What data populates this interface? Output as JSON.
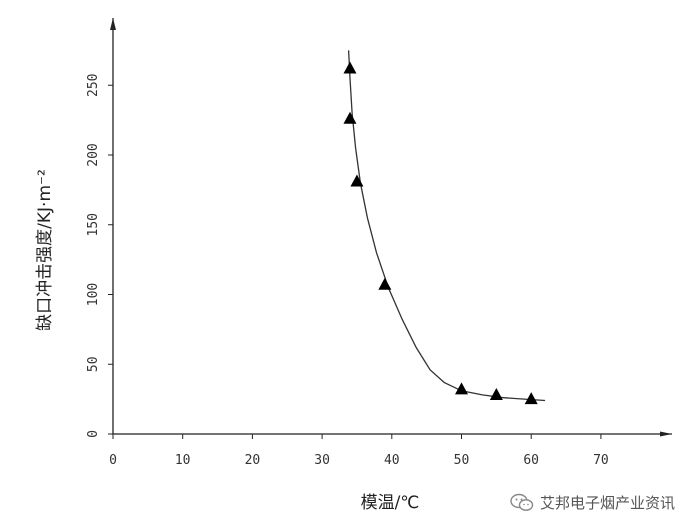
{
  "chart_data": {
    "type": "scatter",
    "title": "",
    "xlabel": "模温/℃",
    "ylabel": "缺口冲击强度/KJ·m⁻²",
    "xlim": [
      0,
      80
    ],
    "ylim": [
      0,
      270
    ],
    "xticks": [
      0,
      10,
      20,
      30,
      40,
      50,
      60,
      70
    ],
    "yticks": [
      0,
      50,
      100,
      150,
      200,
      250
    ],
    "grid": false,
    "series": [
      {
        "marker": "triangle",
        "points": [
          {
            "x": 34,
            "y": 262
          },
          {
            "x": 34,
            "y": 226
          },
          {
            "x": 35,
            "y": 181
          },
          {
            "x": 39,
            "y": 107
          },
          {
            "x": 50,
            "y": 32
          },
          {
            "x": 55,
            "y": 28
          },
          {
            "x": 60,
            "y": 25
          }
        ]
      }
    ],
    "fit_curve": [
      [
        33.8,
        275
      ],
      [
        34.0,
        255
      ],
      [
        34.3,
        230
      ],
      [
        34.8,
        205
      ],
      [
        35.5,
        180
      ],
      [
        36.5,
        155
      ],
      [
        37.8,
        130
      ],
      [
        39.5,
        105
      ],
      [
        41.5,
        82
      ],
      [
        43.5,
        62
      ],
      [
        45.5,
        46
      ],
      [
        47.5,
        37
      ],
      [
        50,
        31
      ],
      [
        53,
        28
      ],
      [
        56,
        26
      ],
      [
        59,
        25
      ],
      [
        62,
        24
      ]
    ],
    "colors": {
      "marker": "#000000",
      "line": "#333333",
      "axis": "#222222"
    }
  },
  "watermark": {
    "text": "艾邦电子烟产业资讯",
    "icon": "wechat-icon"
  }
}
